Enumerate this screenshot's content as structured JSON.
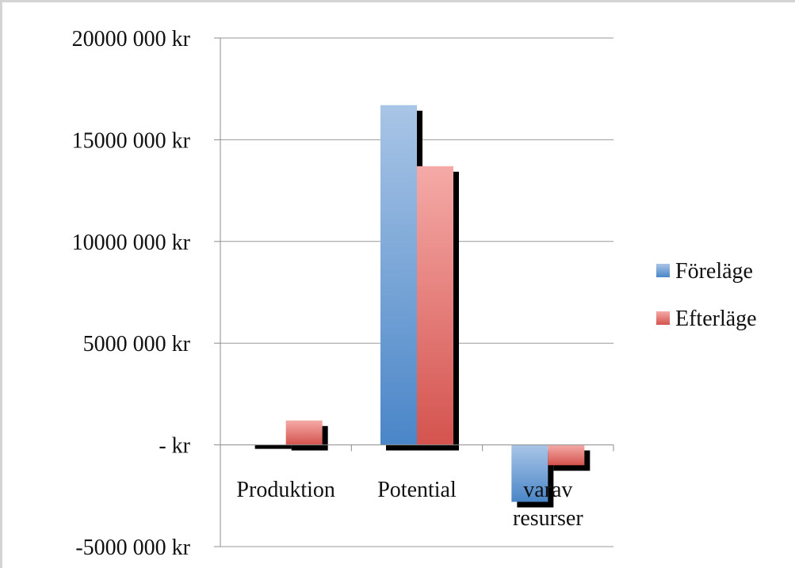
{
  "chart_data": {
    "type": "bar",
    "categories": [
      "Produktion",
      "Potential",
      "varav resurser"
    ],
    "category_lines": [
      [
        "Produktion"
      ],
      [
        "Potential"
      ],
      [
        "varav",
        "resurser"
      ]
    ],
    "series": [
      {
        "name": "Föreläge",
        "values": [
          0,
          16700000,
          -2800000
        ]
      },
      {
        "name": "Efterläge",
        "values": [
          1200000,
          13700000,
          -1000000
        ]
      }
    ],
    "ylim": [
      -5000000,
      20000000
    ],
    "yticks": [
      20000000,
      15000000,
      10000000,
      5000000,
      0,
      -5000000
    ],
    "ytick_labels": [
      "20000 000 kr",
      "15000 000 kr",
      "10000 000 kr",
      "5000 000 kr",
      "-   kr",
      "-5000 000 kr"
    ],
    "grid": true,
    "legend_position": "right",
    "title": "",
    "xlabel": "",
    "ylabel": "",
    "colors": {
      "series_top": [
        "#a9c5e6",
        "#f5aaa7"
      ],
      "series_bottom": [
        "#4a86c8",
        "#d4534e"
      ],
      "shadow": "#000000",
      "grid": "#9a9a9a",
      "axis": "#8c8c8c"
    }
  }
}
